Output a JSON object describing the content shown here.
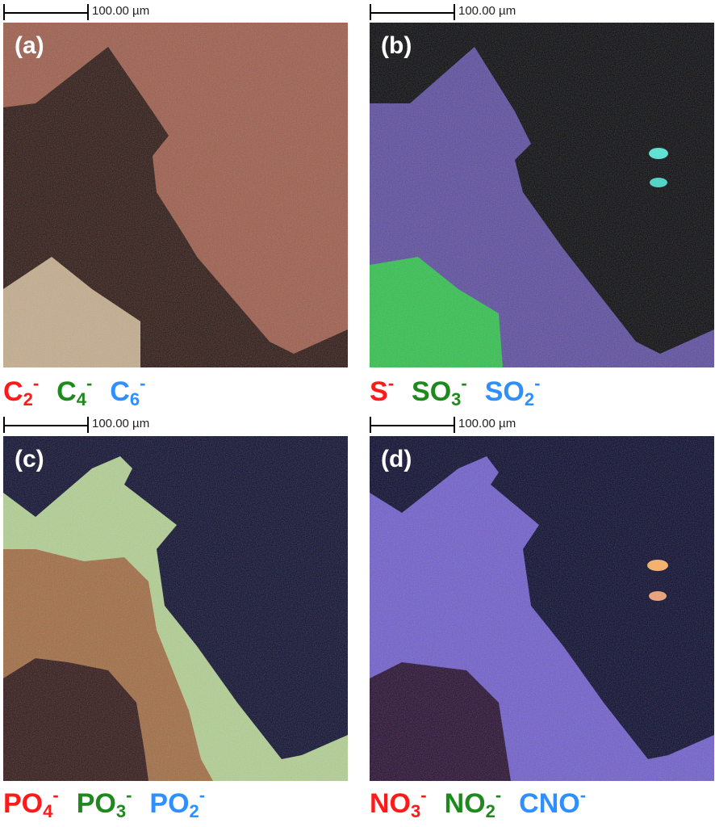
{
  "scale_bar_label": "100.00 µm",
  "panels": [
    {
      "label": "(a)",
      "ions": [
        {
          "base": "C",
          "sub": "2",
          "charge": "-",
          "color": "#ff1a1a"
        },
        {
          "base": "C",
          "sub": "4",
          "charge": "-",
          "color": "#1e8a1e"
        },
        {
          "base": "C",
          "sub": "6",
          "charge": "-",
          "color": "#2f8fff"
        }
      ]
    },
    {
      "label": "(b)",
      "ions": [
        {
          "base": "S",
          "sub": "",
          "charge": "-",
          "color": "#ff1a1a"
        },
        {
          "base": "SO",
          "sub": "3",
          "charge": "-",
          "color": "#1e8a1e"
        },
        {
          "base": "SO",
          "sub": "2",
          "charge": "-",
          "color": "#2f8fff"
        }
      ]
    },
    {
      "label": "(c)",
      "ions": [
        {
          "base": "PO",
          "sub": "4",
          "charge": "-",
          "color": "#ff1a1a"
        },
        {
          "base": "PO",
          "sub": "3",
          "charge": "-",
          "color": "#1e8a1e"
        },
        {
          "base": "PO",
          "sub": "2",
          "charge": "-",
          "color": "#2f8fff"
        }
      ]
    },
    {
      "label": "(d)",
      "ions": [
        {
          "base": "NO",
          "sub": "3",
          "charge": "-",
          "color": "#ff1a1a"
        },
        {
          "base": "NO",
          "sub": "2",
          "charge": "-",
          "color": "#1e8a1e"
        },
        {
          "base": "CNO",
          "sub": "",
          "charge": "-",
          "color": "#2f8fff"
        }
      ]
    }
  ]
}
